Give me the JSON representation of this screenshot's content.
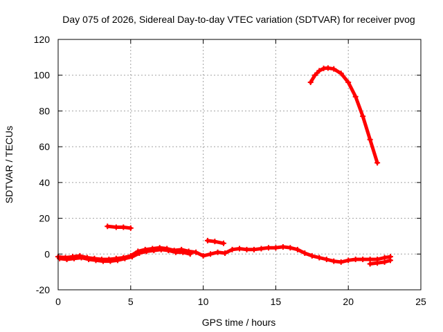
{
  "chart_data": {
    "type": "scatter",
    "title": "Day 075 of 2026, Sidereal Day-to-day VTEC variation (SDTVAR) for receiver pvog",
    "xlabel": "GPS time / hours",
    "ylabel": "SDTVAR / TECUs",
    "xlim": [
      0,
      25
    ],
    "ylim": [
      -20,
      120
    ],
    "xticks": [
      0,
      5,
      10,
      15,
      20,
      25
    ],
    "yticks": [
      -20,
      0,
      20,
      40,
      60,
      80,
      100,
      120
    ],
    "grid": true,
    "color": "#ff0000",
    "series": [
      {
        "name": "main-trace",
        "x": [
          0.0,
          0.5,
          1.0,
          1.5,
          2.0,
          2.5,
          3.0,
          3.5,
          4.0,
          4.5,
          5.0,
          5.5,
          6.0,
          6.5,
          7.0,
          7.5,
          8.0,
          8.5,
          9.0,
          9.5,
          10.0,
          10.5,
          11.0,
          11.5,
          12.0,
          12.5,
          13.0,
          13.5,
          14.0,
          14.5,
          15.0,
          15.5,
          16.0,
          16.5,
          17.0,
          17.5,
          18.0,
          18.5,
          19.0,
          19.5,
          20.0,
          20.5,
          21.0,
          21.5,
          22.0,
          22.5,
          22.9
        ],
        "y": [
          -1.5,
          -2.0,
          -1.5,
          -1.0,
          -2.0,
          -2.5,
          -3.0,
          -3.0,
          -2.5,
          -2.0,
          -1.0,
          1.5,
          2.5,
          3.0,
          3.5,
          3.0,
          2.0,
          2.5,
          1.5,
          1.0,
          -1.0,
          0.0,
          1.0,
          0.5,
          2.5,
          3.0,
          2.5,
          2.5,
          3.0,
          3.5,
          3.5,
          4.0,
          3.5,
          2.5,
          0.5,
          -1.0,
          -2.0,
          -3.0,
          -4.0,
          -4.5,
          -3.5,
          -3.0,
          -3.0,
          -3.0,
          -3.0,
          -2.0,
          -1.5
        ]
      },
      {
        "name": "lower-offset-trace",
        "x": [
          0.1,
          0.6,
          1.1,
          1.6,
          2.1,
          2.6,
          3.1,
          3.6,
          4.1,
          4.6,
          5.1,
          5.6,
          6.1,
          6.6,
          7.1,
          7.6,
          8.1,
          8.6,
          9.1
        ],
        "y": [
          -2.5,
          -3.0,
          -2.5,
          -2.0,
          -3.0,
          -3.5,
          -4.0,
          -4.0,
          -3.5,
          -2.5,
          -1.5,
          0.5,
          1.5,
          2.0,
          2.5,
          2.0,
          1.0,
          1.0,
          0.0
        ]
      },
      {
        "name": "segment-3-5h",
        "x": [
          3.4,
          4.0,
          4.5,
          5.0
        ],
        "y": [
          15.5,
          15.0,
          15.0,
          14.5
        ]
      },
      {
        "name": "segment-10-11h",
        "x": [
          10.3,
          10.8,
          11.4
        ],
        "y": [
          7.5,
          7.0,
          6.0
        ]
      },
      {
        "name": "high-arc",
        "x": [
          17.4,
          17.7,
          18.0,
          18.3,
          18.6,
          19.0,
          19.5,
          20.0,
          20.5,
          21.0,
          21.5,
          22.0
        ],
        "y": [
          96,
          100,
          102.5,
          103.8,
          104,
          103.5,
          101,
          96,
          88,
          77,
          64,
          51
        ]
      },
      {
        "name": "late-lower-segment",
        "x": [
          21.5,
          22.0,
          22.5,
          22.9
        ],
        "y": [
          -5.5,
          -5.0,
          -4.5,
          -3.5
        ]
      }
    ]
  }
}
